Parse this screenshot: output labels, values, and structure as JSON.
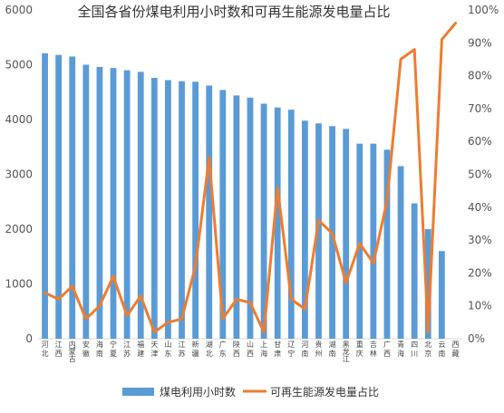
{
  "chart_data": {
    "type": "bar",
    "title": "全国各省份煤电利用小时数和可再生能源发电量占比",
    "categories": [
      "河北",
      "江西",
      "内蒙古",
      "安徽",
      "海南",
      "宁夏",
      "江苏",
      "福建",
      "天津",
      "山东",
      "江苏",
      "新疆",
      "湖北",
      "广东",
      "陕西",
      "山西",
      "上海",
      "甘肃",
      "辽宁",
      "河南",
      "贵州",
      "湖南",
      "黑龙江",
      "重庆",
      "吉林",
      "广西",
      "青海",
      "四川",
      "北京",
      "云南",
      "西藏"
    ],
    "y_left_lim": [
      0,
      6000
    ],
    "y_left_ticks": [
      "0",
      "1000",
      "2000",
      "3000",
      "4000",
      "5000",
      "6000"
    ],
    "y_right_lim": [
      0,
      100
    ],
    "y_right_ticks": [
      "0%",
      "10%",
      "20%",
      "30%",
      "40%",
      "50%",
      "60%",
      "70%",
      "80%",
      "90%",
      "100%"
    ],
    "grid": false,
    "legend_position": "bottom",
    "series": [
      {
        "name": "煤电利用小时数",
        "type": "bar",
        "axis": "left",
        "color": "#5B9BD5",
        "values": [
          5210,
          5180,
          5150,
          5000,
          4960,
          4940,
          4900,
          4870,
          4760,
          4720,
          4700,
          4690,
          4620,
          4540,
          4440,
          4400,
          4290,
          4220,
          4180,
          3980,
          3930,
          3880,
          3830,
          3560,
          3560,
          3450,
          3150,
          2470,
          2000,
          1600,
          null
        ]
      },
      {
        "name": "可再生能源发电量占比",
        "type": "line",
        "axis": "right",
        "color": "#ED7D31",
        "values": [
          14,
          12,
          16,
          6,
          10,
          19,
          7,
          13,
          2,
          5,
          6,
          22,
          55,
          6,
          12,
          11,
          2,
          46,
          12,
          9,
          36,
          32,
          17,
          29,
          23,
          42,
          85,
          88,
          2,
          91,
          96
        ]
      }
    ]
  }
}
